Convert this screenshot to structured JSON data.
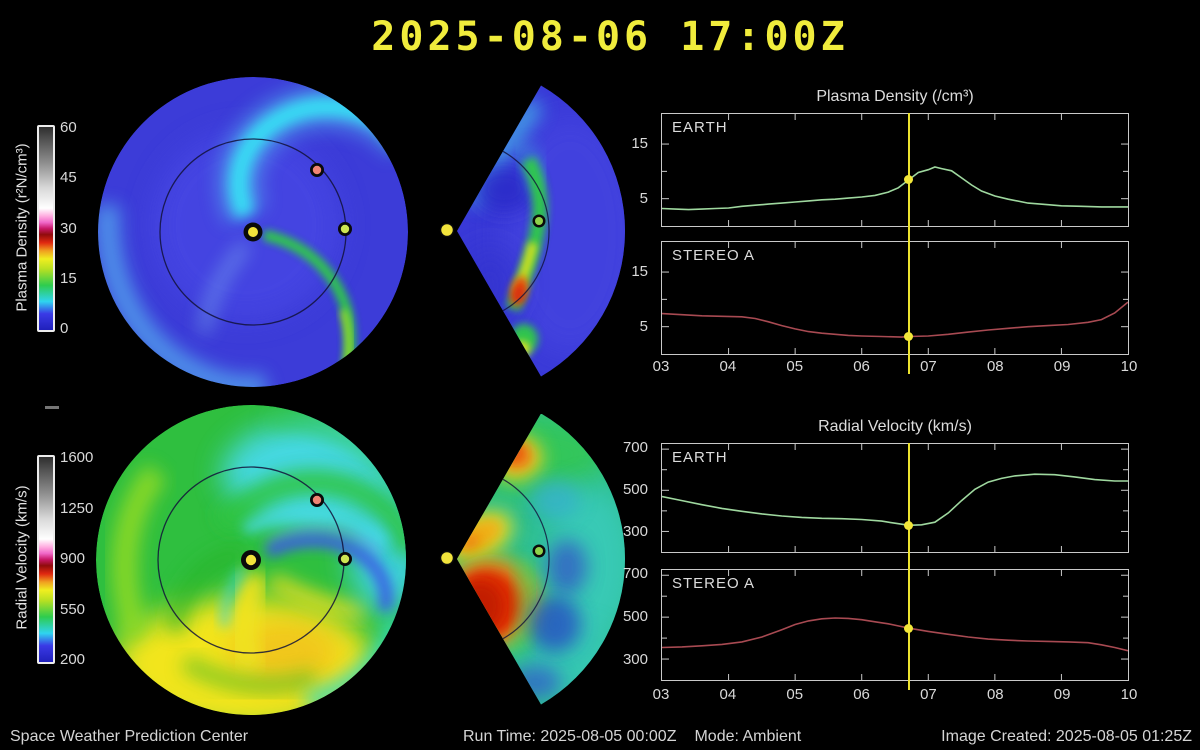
{
  "title": "2025-08-06 17:00Z",
  "footer": {
    "left": "Space Weather Prediction Center",
    "run_time": "Run Time: 2025-08-05 00:00Z",
    "mode": "Mode: Ambient",
    "image_created": "Image Created: 2025-08-05 01:25Z"
  },
  "colorbars": [
    {
      "label": "Plasma Density (r²N/cm³)",
      "ticks": [
        "60",
        "45",
        "30",
        "15",
        "0"
      ]
    },
    {
      "label": "Radial Velocity (km/s)",
      "ticks": [
        "1600",
        "1250",
        "900",
        "550",
        "200"
      ]
    }
  ],
  "map_markers": {
    "sun": "Sun",
    "earth": "EARTH",
    "stereo_a": "STEREO A"
  },
  "colors": {
    "title_yellow": "#f0ec3c",
    "accent_yellow": "#f2e73a",
    "cursor_yellow": "#ece32e",
    "axis_gray": "#c9c9c9",
    "text_gray": "#dcdcdc",
    "earth_curve_green": "#9fd89f",
    "stereo_curve_red": "#a84a52",
    "sun_marker": "#f2e43c",
    "earth_marker": "#cde553",
    "stereo_marker": "#f08474"
  },
  "chart_data": [
    {
      "type": "line",
      "title": "Plasma Density (/cm³)",
      "xlim": [
        3,
        10
      ],
      "ylim": [
        0,
        20.5
      ],
      "xlabelticks": [
        "03",
        "04",
        "05",
        "06",
        "07",
        "08",
        "09",
        "10"
      ],
      "yticks": [
        5,
        10,
        15
      ],
      "ytick_labels": {
        "5": "5",
        "15": "15"
      },
      "cursor_x": 6.71,
      "panels": [
        {
          "label": "EARTH",
          "color": "#9fd89f",
          "marker": [
            6.71,
            8.5
          ],
          "points": [
            [
              3.0,
              3.2
            ],
            [
              3.2,
              3.1
            ],
            [
              3.4,
              3.0
            ],
            [
              3.6,
              3.1
            ],
            [
              3.8,
              3.2
            ],
            [
              4.0,
              3.3
            ],
            [
              4.2,
              3.6
            ],
            [
              4.4,
              3.8
            ],
            [
              4.6,
              4.0
            ],
            [
              4.8,
              4.2
            ],
            [
              5.0,
              4.4
            ],
            [
              5.2,
              4.6
            ],
            [
              5.4,
              4.8
            ],
            [
              5.6,
              4.9
            ],
            [
              5.8,
              5.1
            ],
            [
              6.0,
              5.3
            ],
            [
              6.2,
              5.6
            ],
            [
              6.4,
              6.2
            ],
            [
              6.55,
              7.0
            ],
            [
              6.71,
              8.5
            ],
            [
              6.85,
              9.8
            ],
            [
              7.0,
              10.3
            ],
            [
              7.1,
              10.8
            ],
            [
              7.2,
              10.5
            ],
            [
              7.35,
              10.1
            ],
            [
              7.5,
              8.8
            ],
            [
              7.65,
              7.5
            ],
            [
              7.8,
              6.4
            ],
            [
              8.0,
              5.5
            ],
            [
              8.2,
              4.9
            ],
            [
              8.5,
              4.2
            ],
            [
              8.8,
              3.9
            ],
            [
              9.0,
              3.7
            ],
            [
              9.3,
              3.6
            ],
            [
              9.6,
              3.5
            ],
            [
              10.0,
              3.5
            ]
          ]
        },
        {
          "label": "STEREO A",
          "color": "#a84a52",
          "marker": [
            6.71,
            3.2
          ],
          "points": [
            [
              3.0,
              7.4
            ],
            [
              3.3,
              7.2
            ],
            [
              3.6,
              7.0
            ],
            [
              3.9,
              6.9
            ],
            [
              4.2,
              6.8
            ],
            [
              4.4,
              6.5
            ],
            [
              4.6,
              5.9
            ],
            [
              4.8,
              5.2
            ],
            [
              5.0,
              4.6
            ],
            [
              5.2,
              4.1
            ],
            [
              5.4,
              3.8
            ],
            [
              5.6,
              3.6
            ],
            [
              5.8,
              3.4
            ],
            [
              6.0,
              3.3
            ],
            [
              6.3,
              3.2
            ],
            [
              6.6,
              3.1
            ],
            [
              6.71,
              3.2
            ],
            [
              7.0,
              3.3
            ],
            [
              7.3,
              3.6
            ],
            [
              7.6,
              4.0
            ],
            [
              7.9,
              4.4
            ],
            [
              8.2,
              4.7
            ],
            [
              8.5,
              5.0
            ],
            [
              8.8,
              5.2
            ],
            [
              9.1,
              5.4
            ],
            [
              9.4,
              5.8
            ],
            [
              9.6,
              6.3
            ],
            [
              9.8,
              7.5
            ],
            [
              10.0,
              9.5
            ]
          ]
        }
      ]
    },
    {
      "type": "line",
      "title": "Radial Velocity (km/s)",
      "xlim": [
        3,
        10
      ],
      "ylim": [
        200,
        725
      ],
      "xlabelticks": [
        "03",
        "04",
        "05",
        "06",
        "07",
        "08",
        "09",
        "10"
      ],
      "yticks": [
        300,
        400,
        500,
        600,
        700
      ],
      "ytick_labels": {
        "300": "300",
        "500": "500",
        "700": "700"
      },
      "cursor_x": 6.71,
      "panels": [
        {
          "label": "EARTH",
          "color": "#9fd89f",
          "marker": [
            6.71,
            330
          ],
          "points": [
            [
              3.0,
              470
            ],
            [
              3.3,
              450
            ],
            [
              3.6,
              430
            ],
            [
              3.9,
              412
            ],
            [
              4.2,
              398
            ],
            [
              4.5,
              385
            ],
            [
              4.8,
              375
            ],
            [
              5.1,
              368
            ],
            [
              5.4,
              364
            ],
            [
              5.7,
              362
            ],
            [
              6.0,
              358
            ],
            [
              6.3,
              350
            ],
            [
              6.5,
              340
            ],
            [
              6.71,
              330
            ],
            [
              6.9,
              332
            ],
            [
              7.1,
              345
            ],
            [
              7.3,
              390
            ],
            [
              7.5,
              450
            ],
            [
              7.7,
              505
            ],
            [
              7.9,
              540
            ],
            [
              8.1,
              558
            ],
            [
              8.3,
              570
            ],
            [
              8.6,
              578
            ],
            [
              8.9,
              576
            ],
            [
              9.2,
              565
            ],
            [
              9.5,
              552
            ],
            [
              9.8,
              545
            ],
            [
              10.0,
              545
            ]
          ]
        },
        {
          "label": "STEREO A",
          "color": "#a84a52",
          "marker": [
            6.71,
            447
          ],
          "points": [
            [
              3.0,
              355
            ],
            [
              3.3,
              358
            ],
            [
              3.6,
              363
            ],
            [
              3.9,
              370
            ],
            [
              4.2,
              382
            ],
            [
              4.5,
              405
            ],
            [
              4.8,
              440
            ],
            [
              5.0,
              465
            ],
            [
              5.2,
              482
            ],
            [
              5.4,
              492
            ],
            [
              5.6,
              496
            ],
            [
              5.8,
              494
            ],
            [
              6.0,
              488
            ],
            [
              6.2,
              478
            ],
            [
              6.4,
              468
            ],
            [
              6.6,
              455
            ],
            [
              6.71,
              447
            ],
            [
              7.0,
              432
            ],
            [
              7.3,
              418
            ],
            [
              7.6,
              405
            ],
            [
              7.9,
              395
            ],
            [
              8.2,
              390
            ],
            [
              8.5,
              386
            ],
            [
              8.8,
              384
            ],
            [
              9.1,
              382
            ],
            [
              9.4,
              378
            ],
            [
              9.6,
              368
            ],
            [
              9.8,
              355
            ],
            [
              10.0,
              340
            ]
          ]
        }
      ]
    }
  ]
}
